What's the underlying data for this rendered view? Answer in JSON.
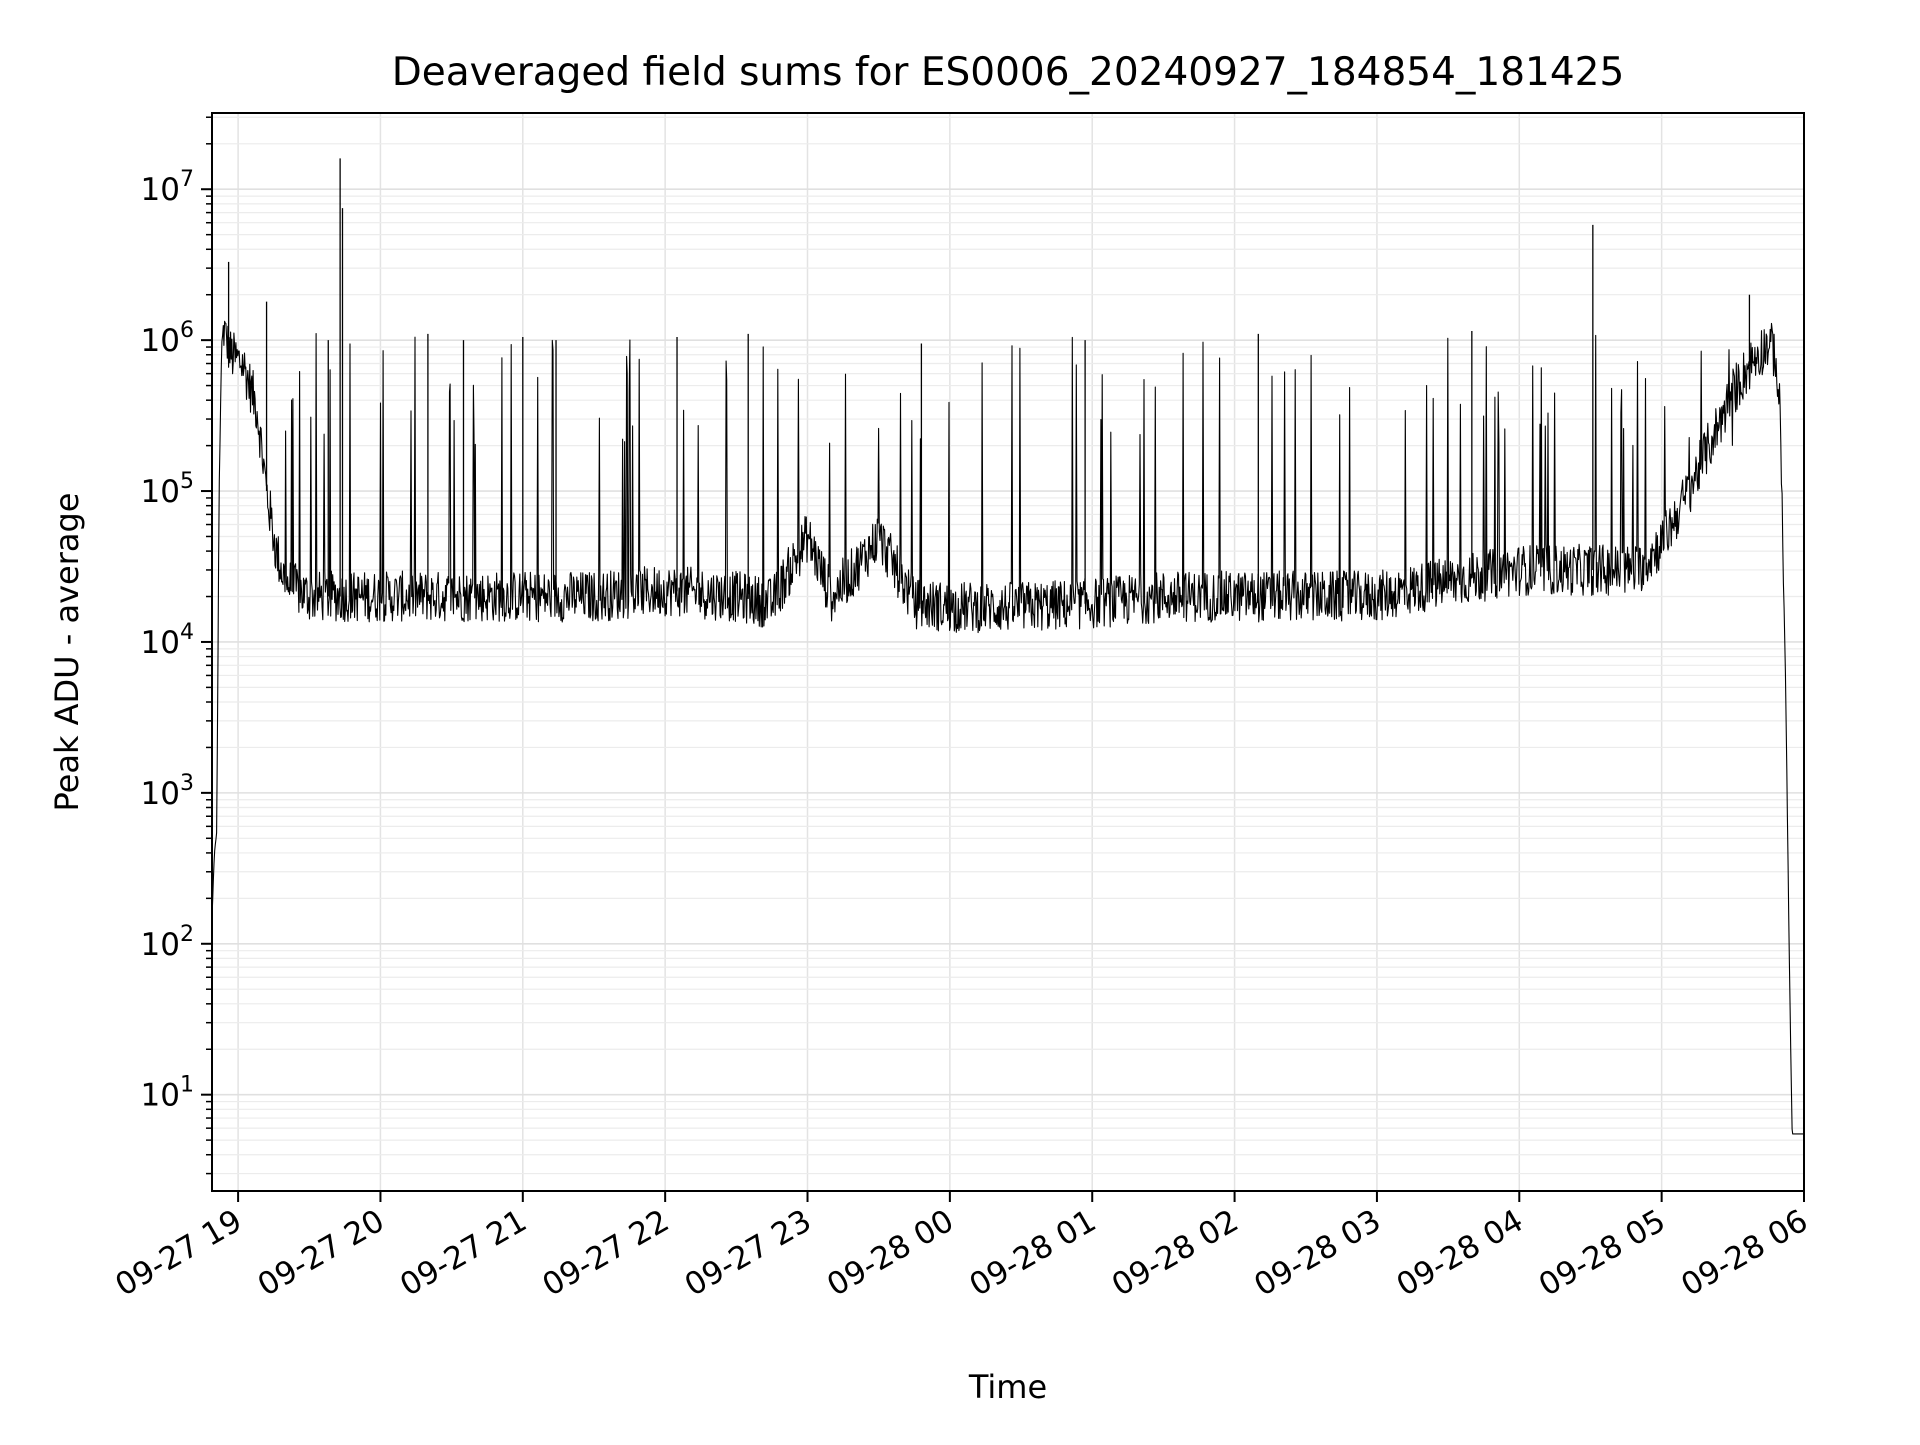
{
  "chart_data": {
    "type": "line",
    "title": "Deaveraged field sums for ES0006_20240927_184854_181425",
    "xlabel": "Time",
    "ylabel": "Peak ADU - average",
    "x_scale": "time",
    "y_scale": "log",
    "xlim": [
      "2024-09-27 18:49",
      "2024-09-28 06:00"
    ],
    "ylim": [
      2.3,
      32000000
    ],
    "grid": true,
    "legend": "none",
    "line_color": "#000000",
    "x_tick_labels": [
      "09-27 19",
      "09-27 20",
      "09-27 21",
      "09-27 22",
      "09-27 23",
      "09-28 00",
      "09-28 01",
      "09-28 02",
      "09-28 03",
      "09-28 04",
      "09-28 05",
      "09-28 06"
    ],
    "y_tick_labels": [
      {
        "exp": "1",
        "value": 10
      },
      {
        "exp": "2",
        "value": 100
      },
      {
        "exp": "3",
        "value": 1000
      },
      {
        "exp": "4",
        "value": 10000
      },
      {
        "exp": "5",
        "value": 100000
      },
      {
        "exp": "6",
        "value": 1000000
      },
      {
        "exp": "7",
        "value": 10000000
      }
    ],
    "series": [
      {
        "x": [
          "2024-09-27 18:49",
          "2024-09-27 18:50",
          "2024-09-27 18:51",
          "2024-09-27 18:52",
          "2024-09-27 18:53",
          "2024-09-27 18:54",
          "2024-09-27 18:55",
          "2024-09-27 18:57",
          "2024-09-27 18:59",
          "2024-09-27 19:02",
          "2024-09-27 19:05",
          "2024-09-27 19:08",
          "2024-09-27 19:12",
          "2024-09-27 19:16",
          "2024-09-27 19:20",
          "2024-09-27 19:25",
          "2024-09-27 19:30",
          "2024-09-27 19:35",
          "2024-09-27 19:40",
          "2024-09-27 19:50",
          "2024-09-27 20:00",
          "2024-09-27 20:30",
          "2024-09-27 21:00",
          "2024-09-27 21:30",
          "2024-09-27 22:00",
          "2024-09-27 22:30",
          "2024-09-27 22:45",
          "2024-09-27 23:00",
          "2024-09-27 23:10",
          "2024-09-27 23:20",
          "2024-09-27 23:30",
          "2024-09-27 23:45",
          "2024-09-28 00:00",
          "2024-09-28 00:30",
          "2024-09-28 01:00",
          "2024-09-28 01:30",
          "2024-09-28 02:00",
          "2024-09-28 02:30",
          "2024-09-28 03:00",
          "2024-09-28 03:30",
          "2024-09-28 04:00",
          "2024-09-28 04:30",
          "2024-09-28 04:50",
          "2024-09-28 05:00",
          "2024-09-28 05:10",
          "2024-09-28 05:20",
          "2024-09-28 05:30",
          "2024-09-28 05:40",
          "2024-09-28 05:45",
          "2024-09-28 05:48",
          "2024-09-28 05:50",
          "2024-09-28 05:52",
          "2024-09-28 05:54",
          "2024-09-28 05:55",
          "2024-09-28 05:56",
          "2024-09-28 06:00"
        ],
        "y": [
          150,
          400,
          550,
          100000,
          800000,
          1200000,
          1000000,
          800000,
          750000,
          700000,
          500000,
          350000,
          100000,
          40000,
          25000,
          22000,
          20000,
          20000,
          20000,
          20000,
          20000,
          20000,
          20000,
          20000,
          22000,
          20000,
          18000,
          50000,
          20000,
          30000,
          50000,
          18000,
          17000,
          17000,
          18000,
          20000,
          20000,
          20000,
          20000,
          25000,
          30000,
          30000,
          30000,
          45000,
          90000,
          200000,
          450000,
          800000,
          950000,
          800000,
          300000,
          10000,
          50,
          5.5,
          5.5,
          5.5
        ]
      }
    ],
    "spikes": [
      {
        "x": "2024-09-27 18:56",
        "y": 3300000
      },
      {
        "x": "2024-09-27 19:12",
        "y": 1800000
      },
      {
        "x": "2024-09-27 19:43",
        "y": 16000000
      },
      {
        "x": "2024-09-27 19:44",
        "y": 7500000
      },
      {
        "x": "2024-09-27 19:38",
        "y": 1000000
      },
      {
        "x": "2024-09-27 20:20",
        "y": 1100000
      },
      {
        "x": "2024-09-27 20:35",
        "y": 1000000
      },
      {
        "x": "2024-09-27 21:00",
        "y": 1050000
      },
      {
        "x": "2024-09-27 21:14",
        "y": 1000000
      },
      {
        "x": "2024-09-27 22:05",
        "y": 1050000
      },
      {
        "x": "2024-09-27 22:35",
        "y": 1100000
      },
      {
        "x": "2024-09-27 23:48",
        "y": 950000
      },
      {
        "x": "2024-09-28 00:57",
        "y": 1000000
      },
      {
        "x": "2024-09-28 02:10",
        "y": 1100000
      },
      {
        "x": "2024-09-28 03:40",
        "y": 1150000
      },
      {
        "x": "2024-09-28 04:31",
        "y": 5800000
      },
      {
        "x": "2024-09-28 05:37",
        "y": 2000000
      }
    ]
  }
}
